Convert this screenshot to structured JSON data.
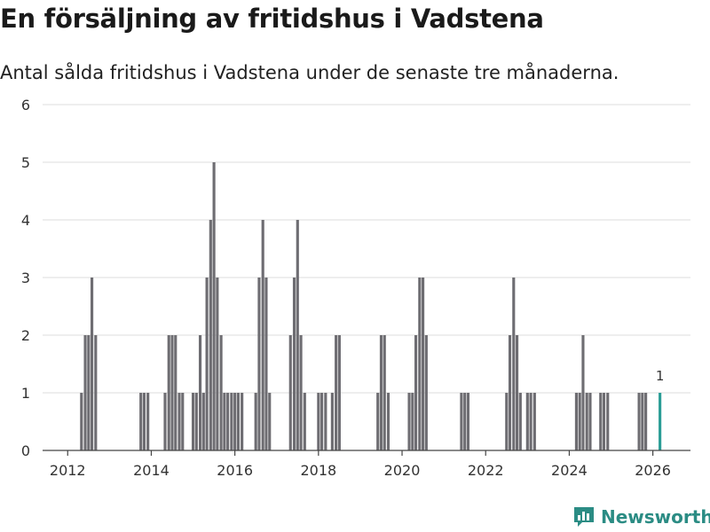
{
  "header": {
    "title": "En försäljning av fritidshus i Vadstena",
    "subtitle": "Antal sålda fritidshus i Vadstena under de senaste tre månaderna."
  },
  "brand": {
    "name": "Newsworthy",
    "icon": "newsworthy-logo-icon"
  },
  "colors": {
    "bar": "#6e6d72",
    "highlight": "#2a9d96",
    "brand": "#2b8c84"
  },
  "chart_data": {
    "type": "bar",
    "title": "En försäljning av fritidshus i Vadstena",
    "xlabel": "",
    "ylabel": "",
    "ylim": [
      0,
      6
    ],
    "yticks": [
      "0",
      "1",
      "2",
      "3",
      "4",
      "5",
      "6"
    ],
    "xlim": [
      2011.4,
      2026.9
    ],
    "xticks": [
      "2012",
      "2014",
      "2016",
      "2018",
      "2020",
      "2022",
      "2024",
      "2026"
    ],
    "bar_width_months": 0.8,
    "highlight_label": "1",
    "x": [
      2012.33,
      2012.42,
      2012.5,
      2012.58,
      2012.67,
      2013.75,
      2013.83,
      2013.92,
      2014.33,
      2014.42,
      2014.5,
      2014.58,
      2014.67,
      2014.75,
      2015.0,
      2015.08,
      2015.17,
      2015.25,
      2015.33,
      2015.42,
      2015.5,
      2015.58,
      2015.67,
      2015.75,
      2015.83,
      2015.92,
      2016.0,
      2016.08,
      2016.17,
      2016.5,
      2016.58,
      2016.67,
      2016.75,
      2016.83,
      2017.33,
      2017.42,
      2017.5,
      2017.58,
      2017.67,
      2018.0,
      2018.08,
      2018.17,
      2018.33,
      2018.42,
      2018.5,
      2019.42,
      2019.5,
      2019.58,
      2019.67,
      2020.17,
      2020.25,
      2020.33,
      2020.42,
      2020.5,
      2020.58,
      2021.42,
      2021.5,
      2021.58,
      2022.5,
      2022.58,
      2022.67,
      2022.75,
      2022.83,
      2023.0,
      2023.08,
      2023.17,
      2024.17,
      2024.25,
      2024.33,
      2024.42,
      2024.5,
      2024.75,
      2024.83,
      2024.92,
      2025.67,
      2025.75,
      2025.83,
      2026.17
    ],
    "values": [
      1,
      2,
      2,
      3,
      2,
      1,
      1,
      1,
      1,
      2,
      2,
      2,
      1,
      1,
      1,
      1,
      2,
      1,
      3,
      4,
      5,
      3,
      2,
      1,
      1,
      1,
      1,
      1,
      1,
      1,
      3,
      4,
      3,
      1,
      2,
      3,
      4,
      2,
      1,
      1,
      1,
      1,
      1,
      2,
      2,
      1,
      2,
      2,
      1,
      1,
      1,
      2,
      3,
      3,
      2,
      1,
      1,
      1,
      1,
      2,
      3,
      2,
      1,
      1,
      1,
      1,
      1,
      1,
      2,
      1,
      1,
      1,
      1,
      1,
      1,
      1,
      1,
      1
    ]
  }
}
